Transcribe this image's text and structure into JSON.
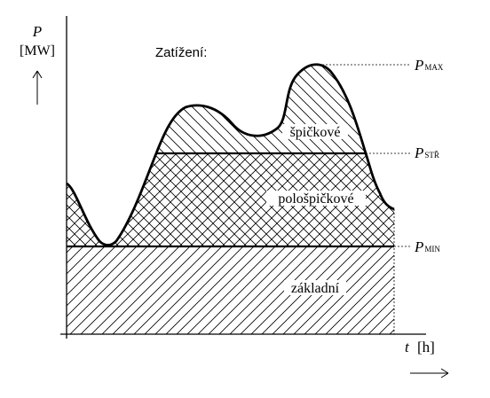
{
  "y_axis": {
    "symbol": "P",
    "unit": "[MW]"
  },
  "x_axis": {
    "symbol": "t",
    "unit": "[h]"
  },
  "legend_title": "Zatížení:",
  "regions": {
    "peak": "špičkové",
    "semi_peak": "pološpičkové",
    "base": "základní"
  },
  "levels": {
    "max": {
      "main": "P",
      "sub": "MAX"
    },
    "mid": {
      "main": "P",
      "sub": "STŘ"
    },
    "min": {
      "main": "P",
      "sub": "MIN"
    }
  },
  "colors": {
    "line": "#000000",
    "background": "#ffffff"
  }
}
